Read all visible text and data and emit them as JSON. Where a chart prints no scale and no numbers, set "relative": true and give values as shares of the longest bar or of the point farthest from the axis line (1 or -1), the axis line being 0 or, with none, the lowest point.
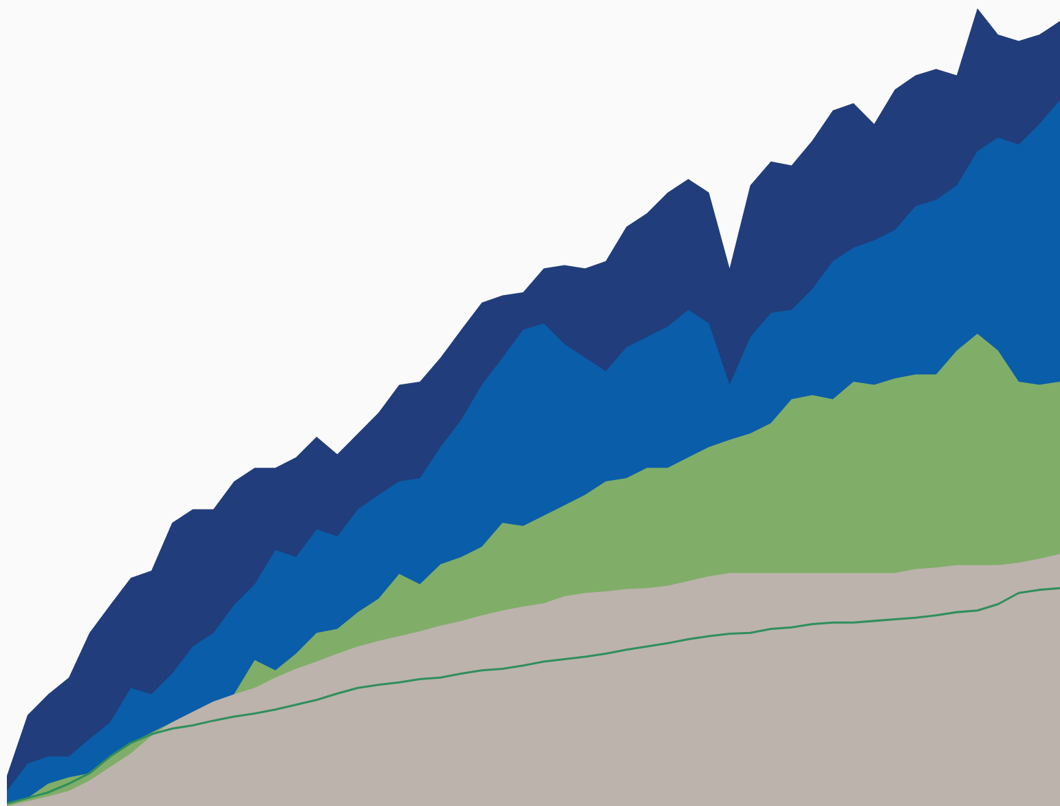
{
  "chart_data": {
    "type": "area",
    "relative": true,
    "categories": [
      null,
      null,
      null,
      null,
      null,
      null,
      null,
      null,
      null,
      null,
      null,
      null,
      null,
      null,
      null,
      null,
      null,
      null,
      null,
      null,
      null,
      null,
      null,
      null,
      null,
      null,
      null,
      null,
      null,
      null,
      null,
      null,
      null,
      null,
      null,
      null,
      null,
      null,
      null,
      null,
      null,
      null,
      null,
      null,
      null,
      null,
      null,
      null,
      null,
      null,
      null,
      null
    ],
    "series": [
      {
        "color": "#213d7b",
        "values": [
          0.038,
          0.114,
          0.14,
          0.161,
          0.217,
          0.252,
          0.286,
          0.295,
          0.355,
          0.372,
          0.372,
          0.407,
          0.424,
          0.424,
          0.437,
          0.463,
          0.441,
          0.467,
          0.493,
          0.528,
          0.532,
          0.562,
          0.597,
          0.631,
          0.64,
          0.644,
          0.674,
          0.678,
          0.674,
          0.683,
          0.726,
          0.743,
          0.769,
          0.786,
          0.769,
          0.674,
          0.778,
          0.808,
          0.803,
          0.834,
          0.872,
          0.881,
          0.855,
          0.898,
          0.916,
          0.924,
          0.916,
          1.0,
          0.967,
          0.959,
          0.967,
          0.984
        ]
      },
      {
        "color": "#0a5da8",
        "values": [
          0.019,
          0.053,
          0.062,
          0.062,
          0.084,
          0.105,
          0.148,
          0.14,
          0.166,
          0.2,
          0.217,
          0.252,
          0.278,
          0.321,
          0.312,
          0.347,
          0.338,
          0.372,
          0.39,
          0.407,
          0.411,
          0.45,
          0.484,
          0.528,
          0.562,
          0.597,
          0.605,
          0.579,
          0.562,
          0.545,
          0.575,
          0.588,
          0.601,
          0.622,
          0.605,
          0.528,
          0.588,
          0.618,
          0.622,
          0.648,
          0.683,
          0.7,
          0.709,
          0.722,
          0.752,
          0.76,
          0.778,
          0.821,
          0.838,
          0.829,
          0.855,
          0.885
        ]
      },
      {
        "color": "#80ae68",
        "values": [
          0.003,
          0.01,
          0.028,
          0.036,
          0.041,
          0.062,
          0.079,
          0.092,
          0.105,
          null,
          null,
          0.14,
          0.183,
          0.17,
          0.191,
          0.217,
          0.222,
          0.243,
          0.26,
          0.291,
          0.278,
          0.303,
          0.312,
          0.325,
          0.355,
          0.351,
          0.364,
          0.377,
          0.39,
          0.407,
          0.411,
          0.424,
          0.424,
          0.437,
          0.45,
          0.459,
          0.467,
          0.48,
          0.51,
          0.515,
          0.51,
          0.532,
          0.528,
          0.536,
          0.541,
          0.541,
          0.571,
          0.592,
          0.571,
          0.532,
          0.528,
          0.532
        ]
      },
      {
        "color": "#bcb3ad",
        "values": [
          0,
          0.006,
          0.012,
          0.019,
          0.032,
          0.049,
          0.066,
          0.088,
          0.105,
          0.118,
          0.131,
          0.14,
          0.148,
          0.161,
          0.172,
          0.181,
          0.191,
          0.2,
          0.207,
          0.213,
          0.219,
          0.226,
          0.232,
          0.239,
          0.245,
          0.25,
          0.254,
          0.263,
          0.267,
          0.269,
          0.272,
          0.273,
          0.276,
          0.282,
          0.288,
          0.292,
          0.292,
          0.292,
          0.292,
          0.292,
          0.292,
          0.292,
          0.292,
          0.292,
          0.297,
          0.299,
          0.302,
          0.302,
          0.302,
          0.305,
          0.31,
          0.316
        ]
      },
      {
        "type": "line",
        "color": "#2f8f5b",
        "values": [
          0.003,
          0.01,
          0.017,
          0.028,
          0.041,
          0.062,
          0.079,
          0.09,
          0.097,
          0.101,
          0.107,
          0.112,
          0.116,
          0.121,
          0.127,
          0.133,
          0.141,
          0.148,
          0.152,
          0.155,
          0.159,
          0.161,
          0.166,
          0.17,
          0.172,
          0.176,
          0.181,
          0.184,
          0.187,
          0.191,
          0.196,
          0.2,
          0.204,
          0.209,
          0.213,
          0.216,
          0.217,
          0.222,
          0.224,
          0.228,
          0.23,
          0.23,
          0.232,
          0.234,
          0.236,
          0.239,
          0.243,
          0.245,
          0.253,
          0.267,
          0.271,
          0.273
        ]
      }
    ]
  }
}
